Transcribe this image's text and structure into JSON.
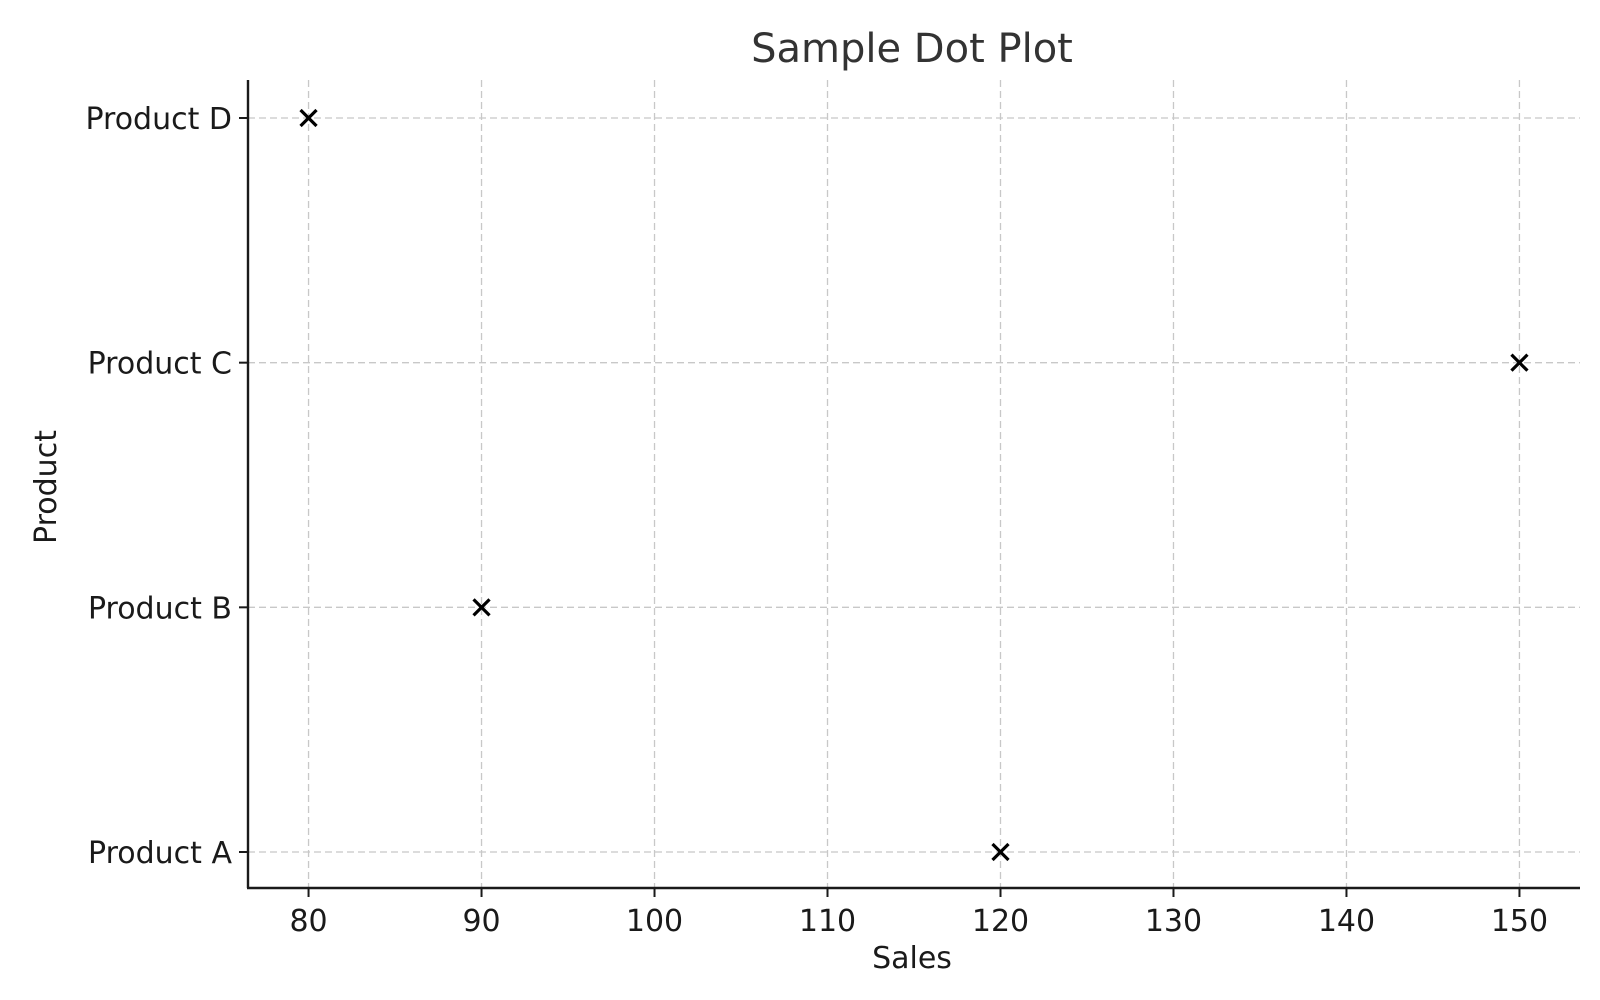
{
  "chart_data": {
    "type": "scatter",
    "title": "Sample Dot Plot",
    "xlabel": "Sales",
    "ylabel": "Product",
    "xlim": [
      76.5,
      153.5
    ],
    "x_ticks": [
      80,
      90,
      100,
      110,
      120,
      130,
      140,
      150
    ],
    "categories": [
      "Product A",
      "Product B",
      "Product C",
      "Product D"
    ],
    "points": [
      {
        "category": "Product A",
        "x": 120
      },
      {
        "category": "Product B",
        "x": 90
      },
      {
        "category": "Product C",
        "x": 150
      },
      {
        "category": "Product D",
        "x": 80
      }
    ],
    "marker": "x",
    "marker_color": "#000000",
    "grid": true,
    "legend": "none"
  }
}
